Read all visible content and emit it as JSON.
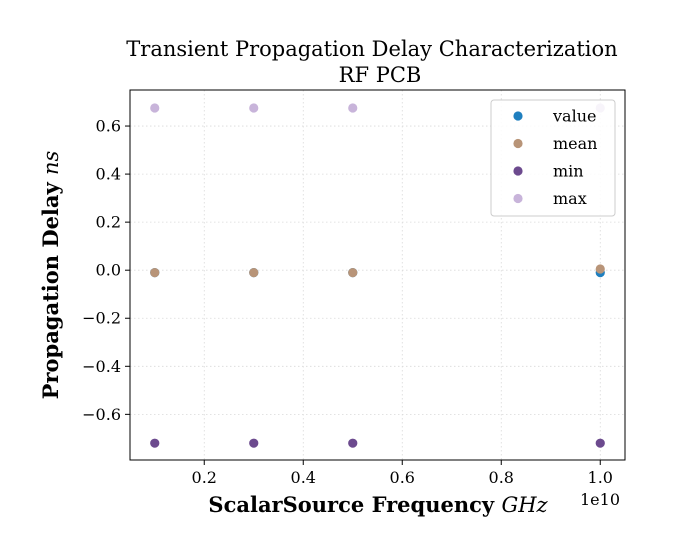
{
  "chart_data": {
    "type": "scatter",
    "title": "Transient Propagation Delay Characterization",
    "subtitle": "RF PCB",
    "xlabel": "ScalarSource Frequency",
    "xlabel_unit": "GHz",
    "ylabel": "Propagation Delay",
    "ylabel_unit": "ns",
    "x_offset_text": "1e10",
    "xlim": [
      0.05,
      1.05
    ],
    "ylim": [
      -0.79,
      0.75
    ],
    "xticks": [
      0.2,
      0.4,
      0.6,
      0.8,
      1.0
    ],
    "xtick_labels": [
      "0.2",
      "0.4",
      "0.6",
      "0.8",
      "1.0"
    ],
    "yticks": [
      -0.6,
      -0.4,
      -0.2,
      0.0,
      0.2,
      0.4,
      0.6
    ],
    "ytick_labels": [
      "−0.6",
      "−0.4",
      "−0.2",
      "0.0",
      "0.2",
      "0.4",
      "0.6"
    ],
    "grid": true,
    "legend_position": "top-right",
    "x": [
      0.1,
      0.3,
      0.5,
      1.0
    ],
    "series": [
      {
        "name": "value",
        "color": "#1f7fbf",
        "values": [
          -0.01,
          -0.01,
          -0.01,
          -0.01
        ]
      },
      {
        "name": "mean",
        "color": "#b89478",
        "values": [
          -0.01,
          -0.01,
          -0.01,
          0.005
        ]
      },
      {
        "name": "min",
        "color": "#6c4a8e",
        "values": [
          -0.72,
          -0.72,
          -0.72,
          -0.72
        ]
      },
      {
        "name": "max",
        "color": "#c8b4da",
        "values": [
          0.675,
          0.675,
          0.675,
          0.675
        ]
      }
    ]
  }
}
